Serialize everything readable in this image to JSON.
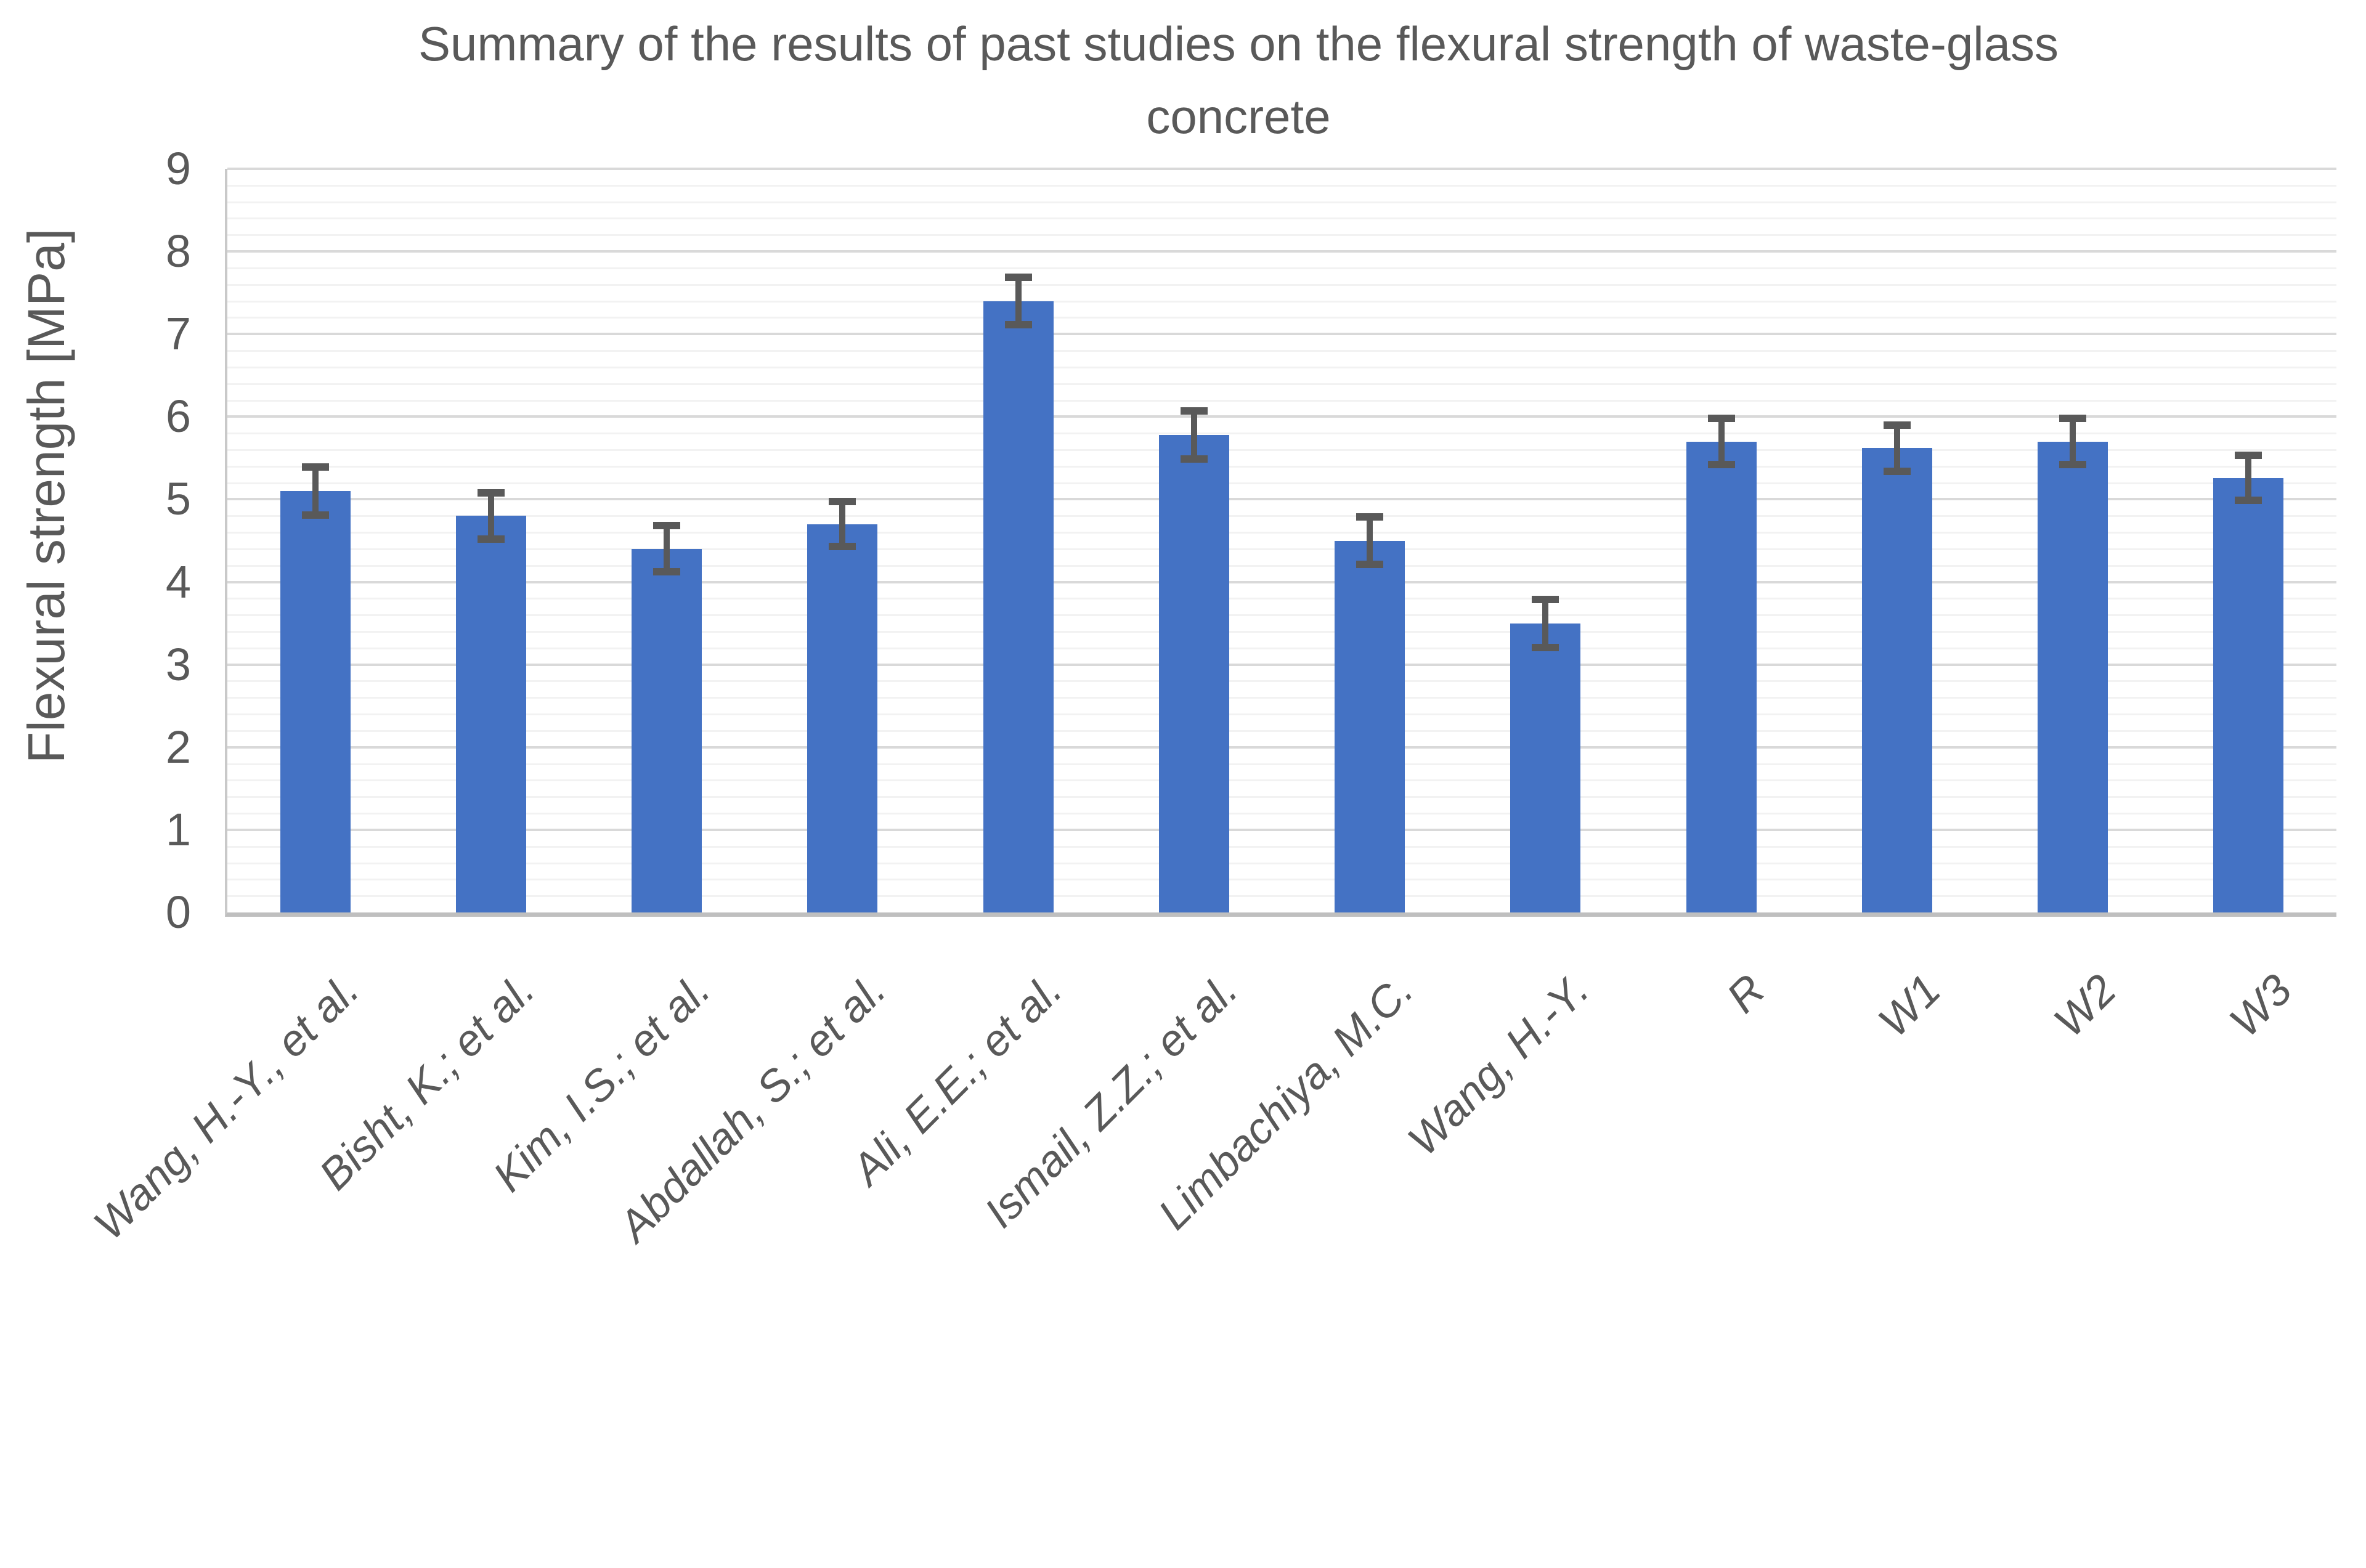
{
  "chart_data": {
    "type": "bar",
    "title": "Summary of the results of past studies on the flexural strength of waste-glass concrete",
    "title_lines": [
      "Summary of the results of past studies on the flexural strength of waste-glass",
      "concrete"
    ],
    "ylabel": "Flexural strength [MPa]",
    "xlabel": "",
    "categories": [
      "Wang, H.-Y., et al.",
      "Bisht, K.; et al.",
      "Kim, I.S.; et al.",
      "Abdallah, S.; et al.",
      "Ali, E.E.; et al.",
      "Ismail, Z.Z.; et al.",
      "Limbachiya, M.C.",
      "Wang, H.-Y.",
      "R",
      "W1",
      "W2",
      "W3"
    ],
    "values": [
      5.1,
      4.8,
      4.4,
      4.7,
      7.4,
      5.78,
      4.5,
      3.5,
      5.7,
      5.62,
      5.7,
      5.26
    ],
    "error_bars": [
      0.29,
      0.28,
      0.28,
      0.27,
      0.29,
      0.29,
      0.29,
      0.29,
      0.28,
      0.28,
      0.28,
      0.27
    ],
    "ylim": [
      0,
      9
    ],
    "y_major_step": 1,
    "y_minor_step": 0.2,
    "yticks": [
      0,
      1,
      2,
      3,
      4,
      5,
      6,
      7,
      8,
      9
    ],
    "grid": "horizontal major and minor gridlines",
    "legend": "none",
    "x_label_rotation_deg": -45,
    "colors": {
      "bar": "#4472C4",
      "error_bar": "#595959",
      "major_gridline": "#D9D9D9",
      "minor_gridline": "#F2F2F2",
      "axis_line": "#BFBFBF",
      "text": "#595959",
      "background": "#FFFFFF"
    }
  }
}
